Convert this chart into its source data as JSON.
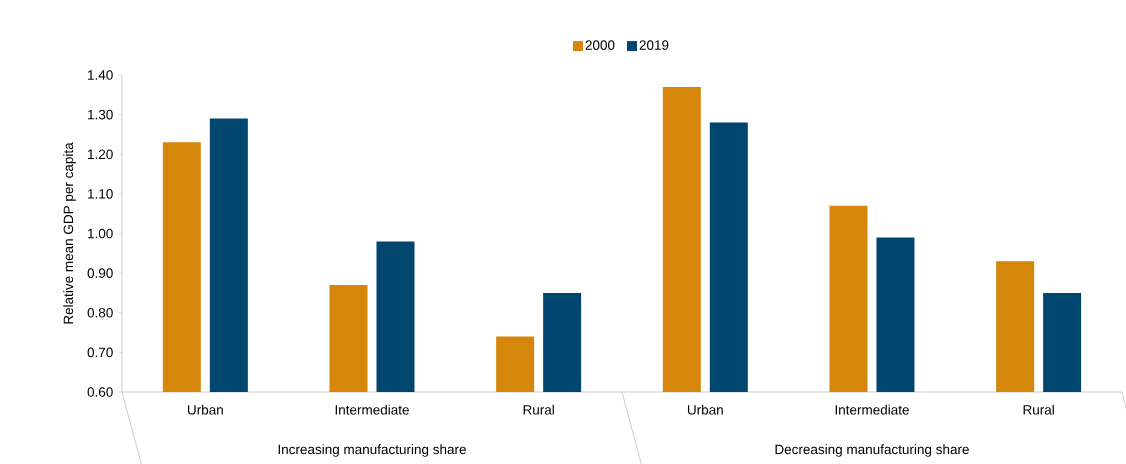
{
  "chart_data": {
    "type": "bar",
    "ylabel": "Relative mean GDP per capita",
    "categories": [
      "Urban",
      "Intermediate",
      "Rural",
      "Urban",
      "Intermediate",
      "Rural"
    ],
    "series": [
      {
        "name": "2000",
        "color": "#d4870b",
        "values": [
          1.23,
          0.87,
          0.74,
          1.37,
          1.07,
          0.93
        ]
      },
      {
        "name": "2019",
        "color": "#00466e",
        "values": [
          1.29,
          0.98,
          0.85,
          1.28,
          0.99,
          0.85
        ]
      }
    ],
    "ylim": [
      0.6,
      1.4
    ],
    "yticks": [
      {
        "value": 0.6,
        "label": "0.60"
      },
      {
        "value": 0.7,
        "label": "0.70"
      },
      {
        "value": 0.8,
        "label": "0.80"
      },
      {
        "value": 0.9,
        "label": "0.90"
      },
      {
        "value": 1.0,
        "label": "1.00"
      },
      {
        "value": 1.1,
        "label": "1.10"
      },
      {
        "value": 1.2,
        "label": "1.20"
      },
      {
        "value": 1.3,
        "label": "1.30"
      },
      {
        "value": 1.4,
        "label": "1.40"
      }
    ],
    "annotations": [
      "Increasing manufacturing share",
      "Decreasing manufacturing share"
    ],
    "legend": "top"
  }
}
